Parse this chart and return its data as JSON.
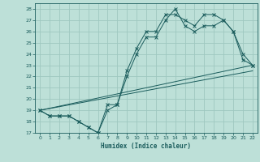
{
  "xlabel": "Humidex (Indice chaleur)",
  "xlim": [
    -0.5,
    22.5
  ],
  "ylim": [
    17,
    28.5
  ],
  "yticks": [
    17,
    18,
    19,
    20,
    21,
    22,
    23,
    24,
    25,
    26,
    27,
    28
  ],
  "xticks": [
    0,
    1,
    2,
    3,
    4,
    5,
    6,
    7,
    8,
    9,
    10,
    11,
    12,
    13,
    14,
    15,
    16,
    17,
    18,
    19,
    20,
    21,
    22
  ],
  "bg_color": "#bde0d8",
  "grid_color": "#9ec8c0",
  "line_color": "#1a5c5c",
  "line1_x": [
    0,
    1,
    2,
    3,
    4,
    5,
    6,
    7,
    8,
    9,
    10,
    11,
    12,
    13,
    14,
    15,
    16,
    17,
    18,
    19,
    20,
    21,
    22
  ],
  "line1_y": [
    19.0,
    18.5,
    18.5,
    18.5,
    18.0,
    17.5,
    17.0,
    19.5,
    19.5,
    22.5,
    24.5,
    26.0,
    26.0,
    27.5,
    27.5,
    27.0,
    26.5,
    27.5,
    27.5,
    27.0,
    26.0,
    23.5,
    23.0
  ],
  "line2_x": [
    0,
    1,
    2,
    3,
    4,
    5,
    6,
    7,
    8,
    9,
    10,
    11,
    12,
    13,
    14,
    15,
    16,
    17,
    18,
    19,
    20,
    21,
    22
  ],
  "line2_y": [
    19.0,
    18.5,
    18.5,
    18.5,
    18.0,
    17.5,
    17.0,
    19.0,
    19.5,
    22.0,
    24.0,
    25.5,
    25.5,
    27.0,
    28.0,
    26.5,
    26.0,
    26.5,
    26.5,
    27.0,
    26.0,
    24.0,
    23.0
  ],
  "line3_x": [
    0,
    22
  ],
  "line3_y": [
    19.0,
    23.0
  ],
  "line4_x": [
    0,
    22
  ],
  "line4_y": [
    19.0,
    22.5
  ]
}
